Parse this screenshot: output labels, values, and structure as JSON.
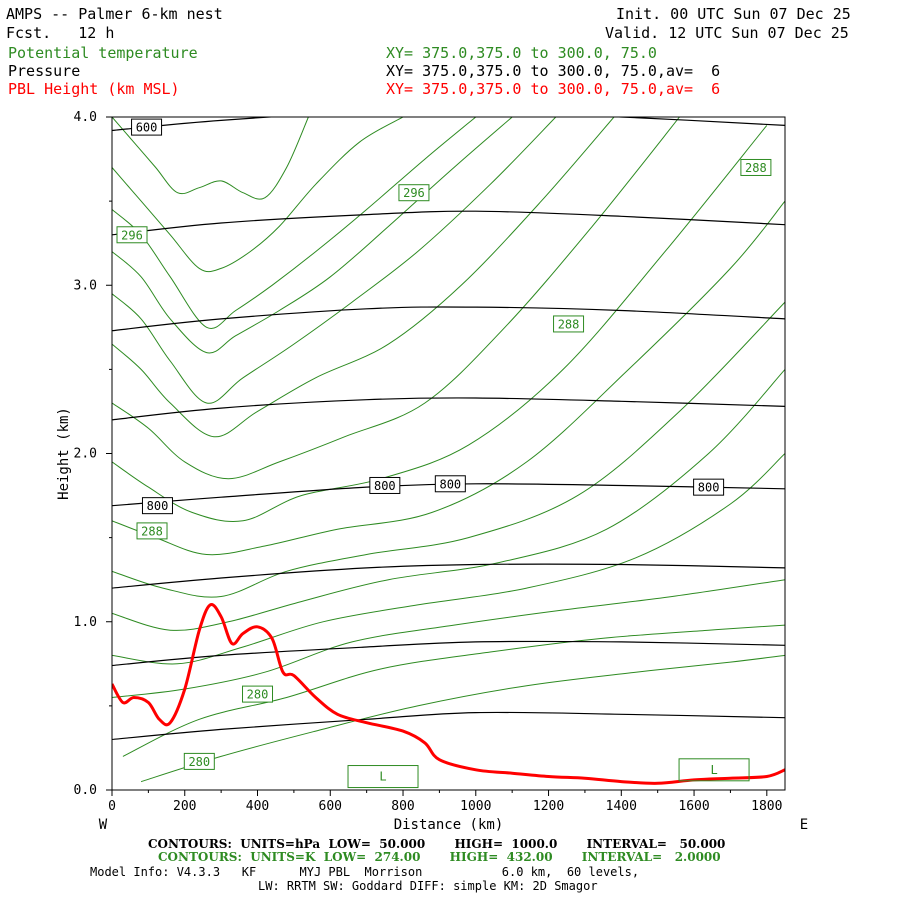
{
  "header": {
    "title": "AMPS -- Palmer 6-km nest",
    "fcst": "Fcst.   12 h",
    "init": "Init. 00 UTC Sun 07 Dec 25",
    "valid": "Valid. 12 UTC Sun 07 Dec 25",
    "fields": [
      {
        "name": "Potential temperature",
        "xy": "XY= 375.0,375.0 to 300.0, 75.0",
        "color": "#2e8b22"
      },
      {
        "name": "Pressure",
        "xy": "XY= 375.0,375.0 to 300.0, 75.0,av=  6",
        "color": "#000000"
      },
      {
        "name": "PBL Height (km MSL)",
        "xy": "XY= 375.0,375.0 to 300.0, 75.0,av=  6",
        "color": "#ff0000"
      }
    ]
  },
  "footer": {
    "line1": "CONTOURS:  UNITS=hPa  LOW=  50.000       HIGH=  1000.0       INTERVAL=   50.000",
    "line2": "CONTOURS:  UNITS=K  LOW=  274.00       HIGH=  432.00       INTERVAL=   2.0000",
    "line3": "Model Info: V4.3.3   KF      MYJ PBL  Morrison           6.0 km,  60 levels,",
    "line4": "LW: RRTM SW: Goddard DIFF: simple KM: 2D Smagor"
  },
  "chart_data": {
    "type": "line",
    "xlabel": "Distance (km)",
    "ylabel": "Height (km)",
    "xlim": [
      0,
      1850
    ],
    "ylim": [
      0,
      4.0
    ],
    "x_ticks": [
      0,
      200,
      400,
      600,
      800,
      1000,
      1200,
      1400,
      1600,
      1800
    ],
    "y_ticks": [
      "0.0",
      "1.0",
      "2.0",
      "3.0",
      "4.0"
    ],
    "x_left_label": "W",
    "x_right_label": "E",
    "colors": {
      "pressure": "#000000",
      "theta": "#2e8b22",
      "pbl": "#ff0000"
    },
    "pressure_contours": [
      {
        "x": [
          0,
          300,
          700,
          1000,
          1400,
          1850
        ],
        "y": [
          3.92,
          3.98,
          4.03,
          4.03,
          4.0,
          3.95
        ]
      },
      {
        "x": [
          0,
          300,
          700,
          1000,
          1400,
          1850
        ],
        "y": [
          3.3,
          3.37,
          3.42,
          3.44,
          3.41,
          3.36
        ]
      },
      {
        "x": [
          0,
          300,
          700,
          1000,
          1400,
          1850
        ],
        "y": [
          2.73,
          2.8,
          2.86,
          2.87,
          2.85,
          2.8
        ]
      },
      {
        "x": [
          0,
          300,
          700,
          1000,
          1400,
          1850
        ],
        "y": [
          2.2,
          2.27,
          2.32,
          2.33,
          2.31,
          2.28
        ]
      },
      {
        "x": [
          0,
          300,
          700,
          1000,
          1400,
          1850
        ],
        "y": [
          1.69,
          1.74,
          1.8,
          1.82,
          1.81,
          1.79
        ]
      },
      {
        "x": [
          0,
          300,
          700,
          1000,
          1400,
          1850
        ],
        "y": [
          1.2,
          1.26,
          1.32,
          1.34,
          1.34,
          1.32
        ]
      },
      {
        "x": [
          0,
          300,
          700,
          1000,
          1400,
          1850
        ],
        "y": [
          0.74,
          0.8,
          0.85,
          0.88,
          0.88,
          0.86
        ]
      },
      {
        "x": [
          0,
          300,
          700,
          1000,
          1400,
          1850
        ],
        "y": [
          0.3,
          0.36,
          0.42,
          0.46,
          0.45,
          0.43
        ]
      }
    ],
    "pressure_labels": [
      {
        "text": "600",
        "x": 95,
        "y": 3.94
      },
      {
        "text": "800",
        "x": 125,
        "y": 1.69
      },
      {
        "text": "800",
        "x": 750,
        "y": 1.81
      },
      {
        "text": "800",
        "x": 930,
        "y": 1.82
      },
      {
        "text": "800",
        "x": 1640,
        "y": 1.8
      }
    ],
    "theta_contours": [
      {
        "x": [
          0,
          60,
          120,
          180,
          240,
          300,
          360,
          420,
          480,
          540
        ],
        "y": [
          4.0,
          3.85,
          3.7,
          3.55,
          3.58,
          3.62,
          3.55,
          3.52,
          3.7,
          4.0
        ]
      },
      {
        "x": [
          0,
          80,
          160,
          240,
          300,
          380,
          460,
          560,
          680,
          800
        ],
        "y": [
          3.7,
          3.5,
          3.3,
          3.1,
          3.1,
          3.2,
          3.35,
          3.6,
          3.85,
          4.0
        ]
      },
      {
        "x": [
          0,
          80,
          160,
          260,
          340,
          440,
          560,
          700,
          860,
          1000
        ],
        "y": [
          3.45,
          3.3,
          3.05,
          2.75,
          2.85,
          3.0,
          3.2,
          3.45,
          3.75,
          4.0
        ]
      },
      {
        "x": [
          0,
          80,
          160,
          260,
          340,
          460,
          600,
          760,
          940,
          1100
        ],
        "y": [
          3.2,
          3.05,
          2.8,
          2.6,
          2.7,
          2.85,
          3.05,
          3.35,
          3.7,
          4.0
        ]
      },
      {
        "x": [
          0,
          80,
          160,
          260,
          360,
          500,
          660,
          840,
          1040,
          1220
        ],
        "y": [
          2.95,
          2.8,
          2.55,
          2.3,
          2.45,
          2.65,
          2.9,
          3.2,
          3.6,
          4.0
        ]
      },
      {
        "x": [
          0,
          80,
          160,
          280,
          400,
          560,
          760,
          960,
          1180,
          1380
        ],
        "y": [
          2.65,
          2.5,
          2.3,
          2.1,
          2.25,
          2.45,
          2.65,
          3.0,
          3.5,
          4.0
        ]
      },
      {
        "x": [
          0,
          100,
          200,
          320,
          460,
          640,
          860,
          1080,
          1320,
          1560
        ],
        "y": [
          2.3,
          2.15,
          1.95,
          1.85,
          1.95,
          2.1,
          2.3,
          2.75,
          3.35,
          4.0
        ]
      },
      {
        "x": [
          0,
          100,
          220,
          360,
          520,
          740,
          980,
          1240,
          1520,
          1800
        ],
        "y": [
          1.95,
          1.8,
          1.65,
          1.6,
          1.75,
          1.85,
          2.05,
          2.5,
          3.2,
          3.95
        ]
      },
      {
        "x": [
          0,
          120,
          260,
          420,
          620,
          880,
          1140,
          1420,
          1700,
          1850
        ],
        "y": [
          1.6,
          1.5,
          1.4,
          1.45,
          1.55,
          1.65,
          1.95,
          2.5,
          3.1,
          3.5
        ]
      },
      {
        "x": [
          0,
          140,
          300,
          480,
          700,
          980,
          1280,
          1560,
          1850
        ],
        "y": [
          1.3,
          1.2,
          1.15,
          1.3,
          1.4,
          1.5,
          1.75,
          2.25,
          2.9
        ]
      },
      {
        "x": [
          0,
          160,
          320,
          520,
          760,
          1060,
          1360,
          1640,
          1850
        ],
        "y": [
          1.05,
          0.95,
          1.0,
          1.12,
          1.25,
          1.35,
          1.55,
          2.0,
          2.5
        ]
      },
      {
        "x": [
          0,
          180,
          360,
          580,
          840,
          1140,
          1440,
          1700,
          1850
        ],
        "y": [
          0.8,
          0.75,
          0.85,
          1.0,
          1.1,
          1.2,
          1.38,
          1.7,
          2.0
        ]
      },
      {
        "x": [
          0,
          200,
          420,
          660,
          940,
          1240,
          1540,
          1850
        ],
        "y": [
          0.55,
          0.6,
          0.7,
          0.88,
          0.98,
          1.07,
          1.15,
          1.25
        ]
      },
      {
        "x": [
          30,
          240,
          480,
          740,
          1040,
          1340,
          1640,
          1850
        ],
        "y": [
          0.2,
          0.42,
          0.55,
          0.72,
          0.82,
          0.9,
          0.95,
          0.98
        ]
      },
      {
        "x": [
          80,
          300,
          560,
          840,
          1140,
          1440,
          1700,
          1850
        ],
        "y": [
          0.05,
          0.2,
          0.35,
          0.5,
          0.62,
          0.7,
          0.76,
          0.8
        ]
      }
    ],
    "theta_labels": [
      {
        "text": "296",
        "x": 55,
        "y": 3.3
      },
      {
        "text": "296",
        "x": 830,
        "y": 3.55
      },
      {
        "text": "288",
        "x": 1770,
        "y": 3.7
      },
      {
        "text": "288",
        "x": 1255,
        "y": 2.77
      },
      {
        "text": "288",
        "x": 110,
        "y": 1.54
      },
      {
        "text": "280",
        "x": 400,
        "y": 0.57
      },
      {
        "text": "280",
        "x": 240,
        "y": 0.17
      }
    ],
    "low_labels": [
      {
        "text": "L",
        "x": 745,
        "y": 0.08
      },
      {
        "text": "L",
        "x": 1655,
        "y": 0.12
      }
    ],
    "pbl_height": {
      "x": [
        0,
        30,
        60,
        100,
        130,
        160,
        200,
        240,
        270,
        300,
        330,
        360,
        400,
        440,
        470,
        500,
        560,
        620,
        700,
        800,
        860,
        900,
        1000,
        1100,
        1200,
        1300,
        1400,
        1500,
        1600,
        1700,
        1800,
        1850
      ],
      "y": [
        0.63,
        0.52,
        0.55,
        0.52,
        0.42,
        0.4,
        0.6,
        0.95,
        1.1,
        1.03,
        0.87,
        0.93,
        0.97,
        0.9,
        0.7,
        0.68,
        0.55,
        0.45,
        0.4,
        0.35,
        0.28,
        0.18,
        0.12,
        0.1,
        0.08,
        0.07,
        0.05,
        0.04,
        0.06,
        0.07,
        0.08,
        0.12
      ]
    }
  }
}
